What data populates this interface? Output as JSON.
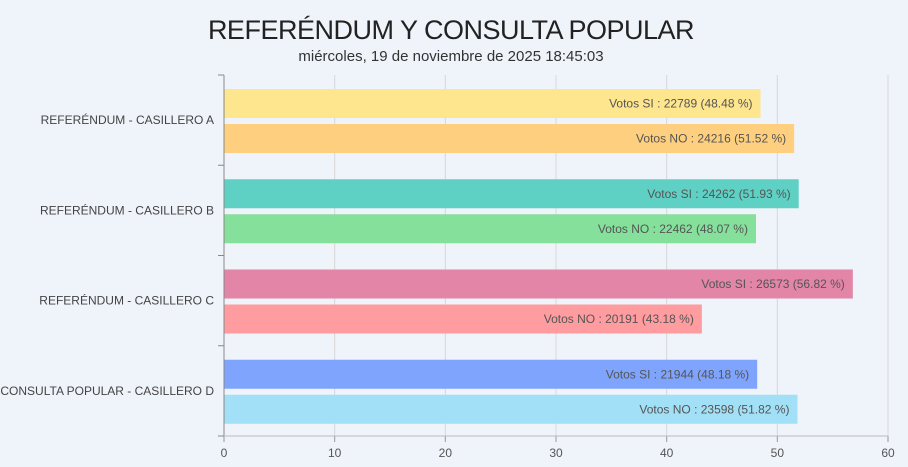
{
  "chart_data": {
    "type": "bar",
    "orientation": "horizontal",
    "title": "REFERÉNDUM Y CONSULTA POPULAR",
    "subtitle": "miércoles, 19 de noviembre de 2025 18:45:03",
    "xlabel": "",
    "ylabel": "",
    "xlim": [
      0,
      60
    ],
    "x_ticks": [
      0,
      10,
      20,
      30,
      40,
      50,
      60
    ],
    "grid": true,
    "legend": "none",
    "categories": [
      "REFERÉNDUM - CASILLERO A",
      "REFERÉNDUM - CASILLERO B",
      "REFERÉNDUM - CASILLERO C",
      "CONSULTA POPULAR - CASILLERO D"
    ],
    "groups": [
      {
        "category": "REFERÉNDUM - CASILLERO A",
        "bars": [
          {
            "label": "Votos SI : 22789  (48.48 %)",
            "value": 48.48,
            "color": "#fde68e"
          },
          {
            "label": "Votos NO : 24216  (51.52 %)",
            "value": 51.52,
            "color": "#fdcf7f"
          }
        ]
      },
      {
        "category": "REFERÉNDUM - CASILLERO B",
        "bars": [
          {
            "label": "Votos SI : 24262  (51.93 %)",
            "value": 51.93,
            "color": "#5fd0c4"
          },
          {
            "label": "Votos NO : 22462  (48.07 %)",
            "value": 48.07,
            "color": "#84e09a"
          }
        ]
      },
      {
        "category": "REFERÉNDUM - CASILLERO C",
        "bars": [
          {
            "label": "Votos SI : 26573  (56.82 %)",
            "value": 56.82,
            "color": "#e285a6"
          },
          {
            "label": "Votos NO : 20191  (43.18 %)",
            "value": 43.18,
            "color": "#fe9c9f"
          }
        ]
      },
      {
        "category": "CONSULTA POPULAR - CASILLERO D",
        "bars": [
          {
            "label": "Votos SI : 21944  (48.18 %)",
            "value": 48.18,
            "color": "#7fa4fe"
          },
          {
            "label": "Votos NO : 23598  (51.82 %)",
            "value": 51.82,
            "color": "#a2e0f7"
          }
        ]
      }
    ]
  }
}
